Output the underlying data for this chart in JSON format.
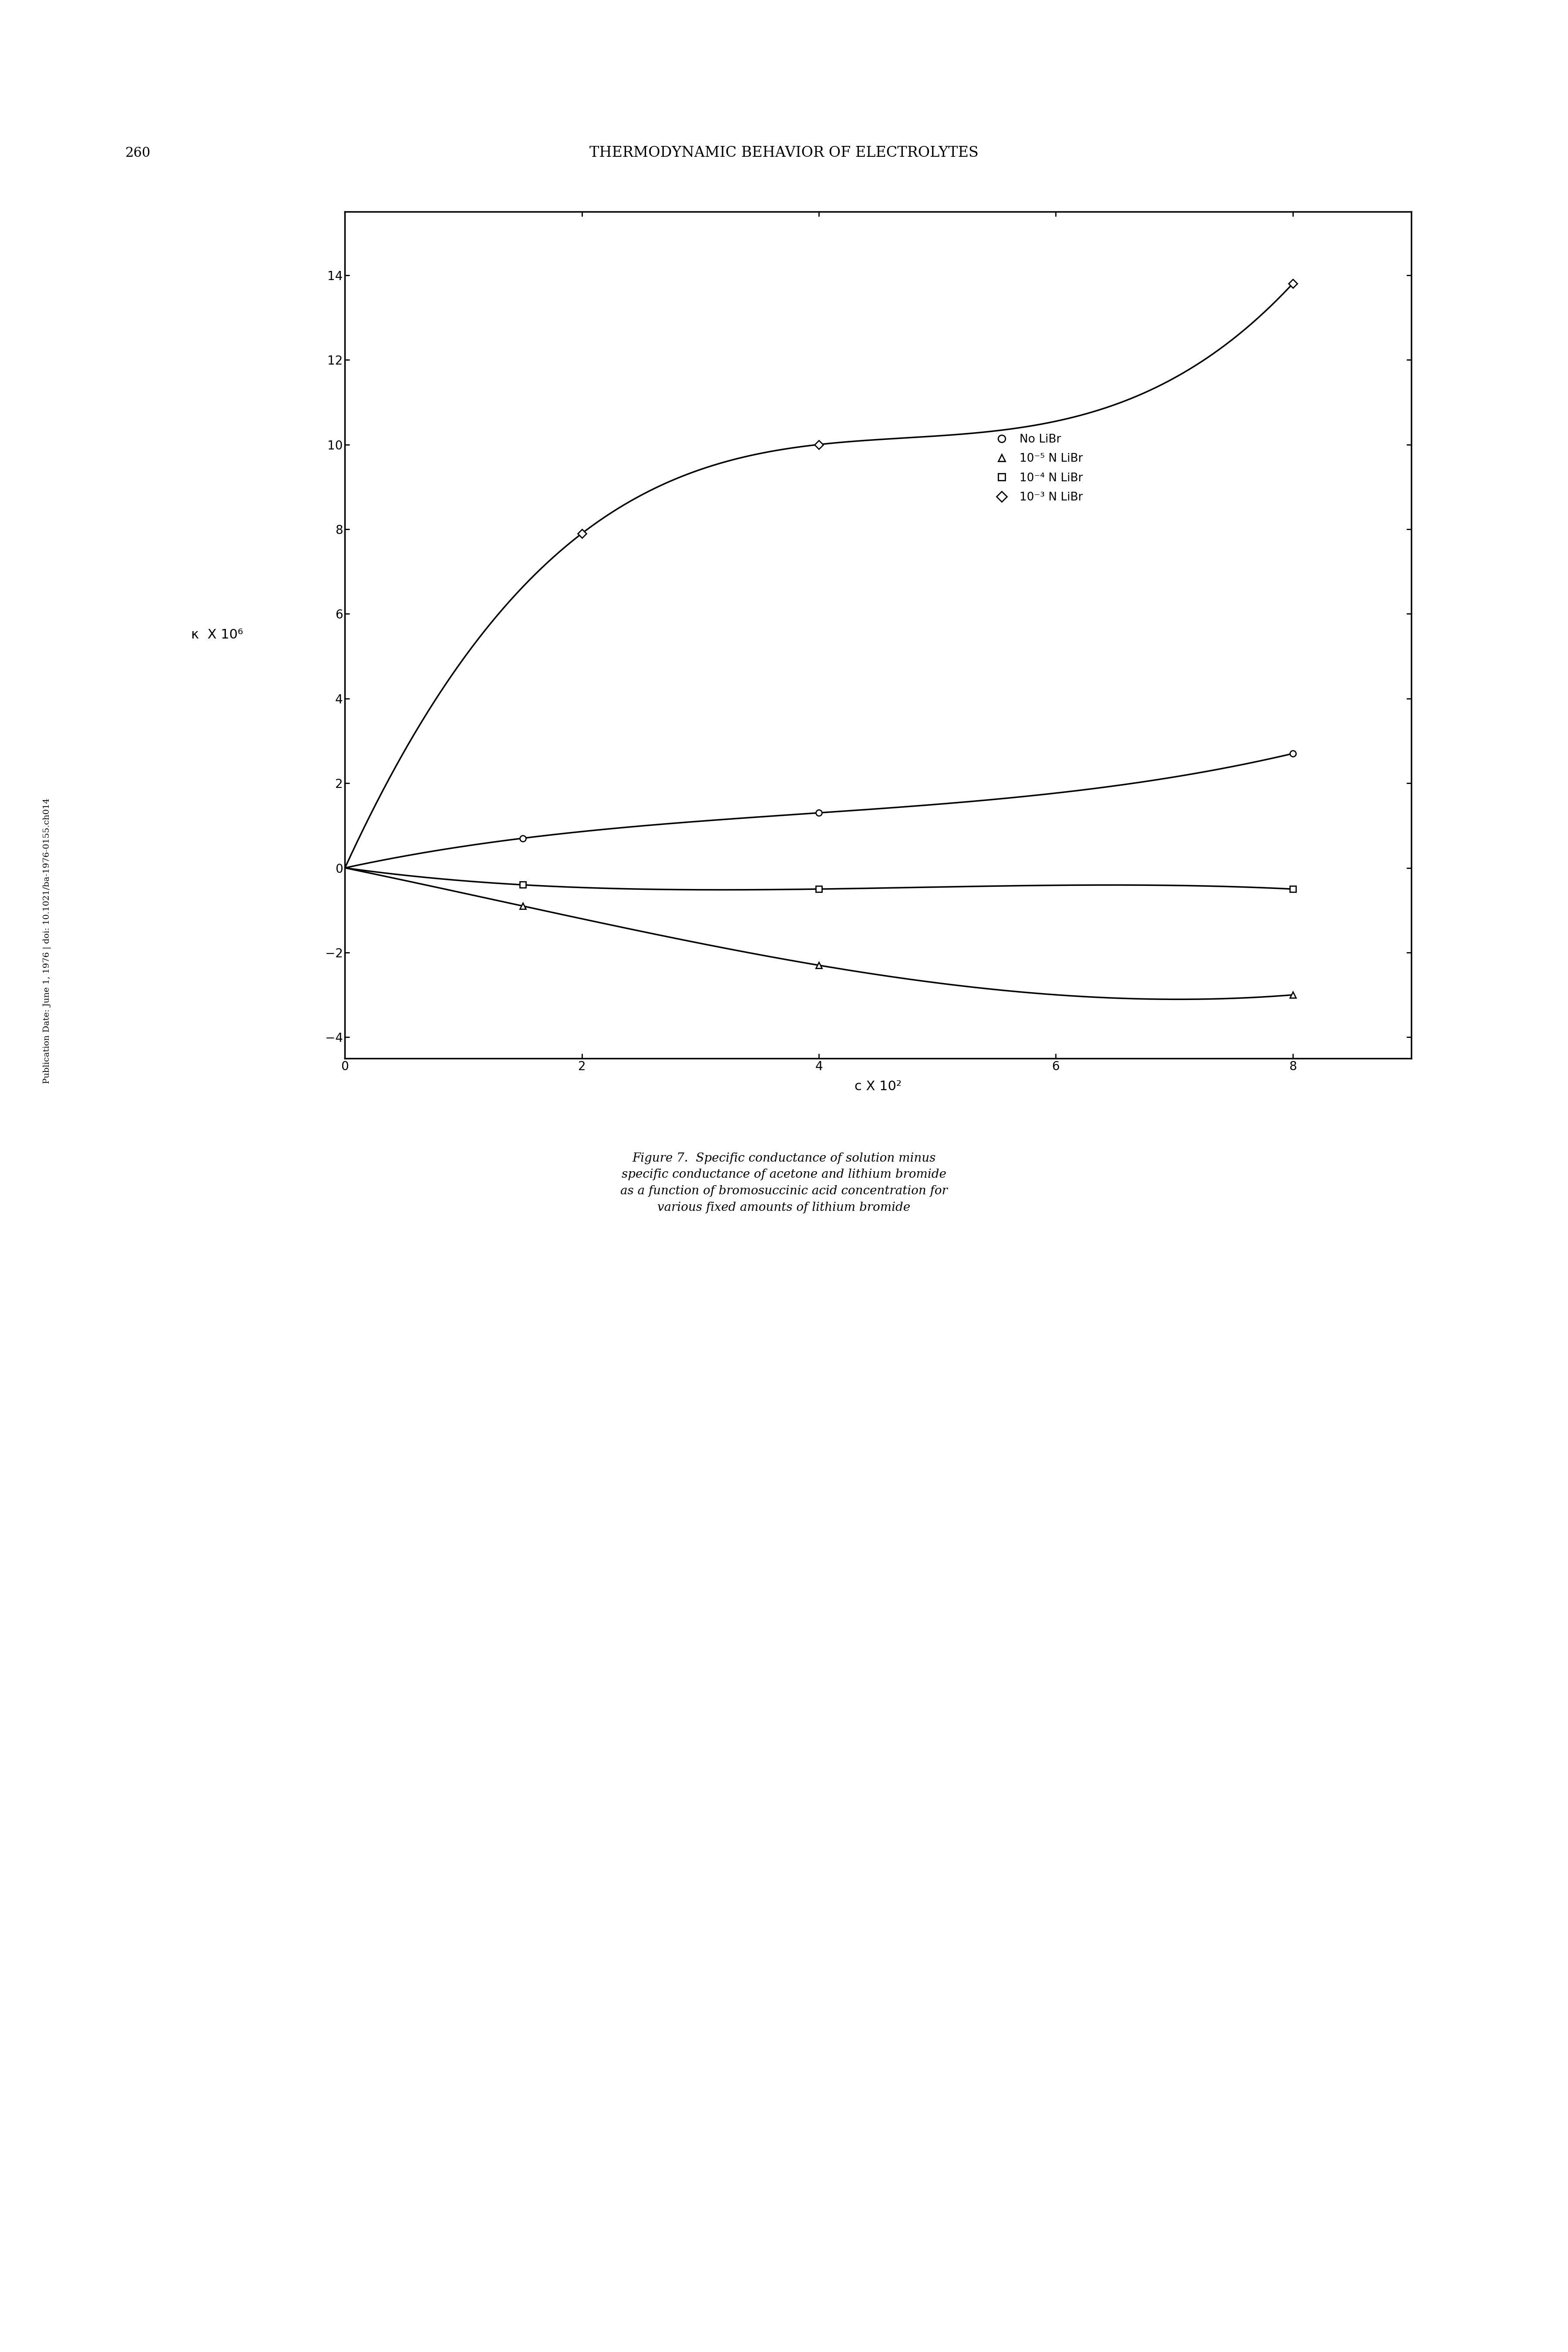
{
  "title_header": "THERMODYNAMIC BEHAVIOR OF ELECTROLYTES",
  "page_number": "260",
  "figure_caption": "Figure 7.  Specific conductance of solution minus\nspecific conductance of acetone and lithium bromide\nas a function of bromosuccinic acid concentration for\nvarious fixed amounts of lithium bromide",
  "xlabel": "c X 10²",
  "ylabel": "κ  X 10⁶",
  "xlim": [
    0,
    9
  ],
  "ylim": [
    -4.5,
    15.5
  ],
  "xticks": [
    0,
    2,
    4,
    6,
    8
  ],
  "yticks": [
    -4,
    -2,
    0,
    2,
    4,
    6,
    8,
    10,
    12,
    14
  ],
  "series": [
    {
      "label": "No LiBr",
      "marker": "circle",
      "data_x": [
        0,
        1.5,
        4,
        8
      ],
      "data_y": [
        0,
        0.7,
        1.3,
        2.7
      ],
      "curve_x": [
        0,
        1.5,
        4,
        8
      ],
      "curve_y": [
        0,
        0.7,
        1.3,
        2.7
      ]
    },
    {
      "label": "10⁻⁵ N LiBr",
      "marker": "triangle",
      "data_x": [
        0,
        1.5,
        4,
        8
      ],
      "data_y": [
        0,
        -0.9,
        -2.3,
        -3.0
      ],
      "curve_x": [
        0,
        1.5,
        4,
        8
      ],
      "curve_y": [
        0,
        -0.9,
        -2.3,
        -3.0
      ]
    },
    {
      "label": "10⁻⁴ N LiBr",
      "marker": "square",
      "data_x": [
        0,
        1.5,
        4,
        8
      ],
      "data_y": [
        0,
        -0.4,
        -0.5,
        -0.5
      ],
      "curve_x": [
        0,
        1.5,
        4,
        8
      ],
      "curve_y": [
        0,
        -0.4,
        -0.5,
        -0.5
      ]
    },
    {
      "label": "10⁻³ N LiBr",
      "marker": "diamond",
      "data_x": [
        0,
        2,
        4,
        8
      ],
      "data_y": [
        0,
        7.9,
        10.0,
        13.8
      ],
      "curve_x": [
        0,
        2,
        4,
        8
      ],
      "curve_y": [
        0,
        7.9,
        10.0,
        13.8
      ]
    }
  ],
  "background_color": "#ffffff",
  "line_color": "#000000",
  "marker_size": 10,
  "linewidth": 2.5
}
